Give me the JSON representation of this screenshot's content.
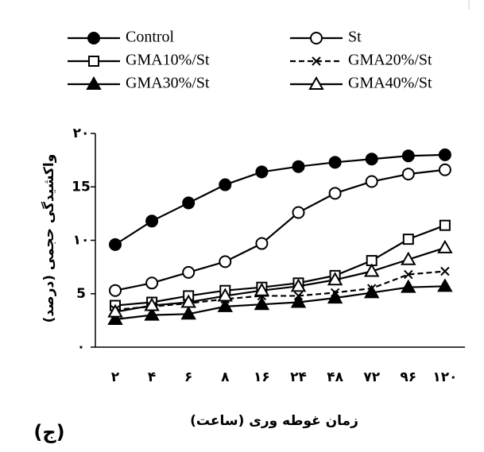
{
  "chart_data": {
    "type": "line",
    "ylabel": "واکشیدگی حجمی (درصد)",
    "xlabel": "زمان غوطه وری (ساعت)",
    "panel_label": "(ج)",
    "categories": [
      "۲",
      "۴",
      "۶",
      "۸",
      "۱۶",
      "۲۴",
      "۴۸",
      "۷۲",
      "۹۶",
      "۱۲۰"
    ],
    "ylim": [
      0,
      20
    ],
    "yticks": [
      {
        "value": 0,
        "label": "۰"
      },
      5,
      {
        "value": 10,
        "label": "۱۰"
      },
      15,
      {
        "value": 20,
        "label": "۲۰"
      }
    ],
    "series": [
      {
        "name": "Control",
        "color": "#000",
        "marker": "circle-filled",
        "dash": false,
        "values": [
          9.6,
          11.8,
          13.5,
          15.2,
          16.4,
          16.9,
          17.3,
          17.6,
          17.9,
          18.0
        ]
      },
      {
        "name": "St",
        "color": "#000",
        "marker": "circle-open",
        "dash": false,
        "values": [
          5.3,
          6.0,
          7.0,
          8.0,
          9.7,
          12.6,
          14.4,
          15.5,
          16.2,
          16.6
        ]
      },
      {
        "name": "GMA10%/St",
        "color": "#000",
        "marker": "square-open",
        "dash": false,
        "values": [
          3.9,
          4.2,
          4.8,
          5.3,
          5.6,
          6.0,
          6.7,
          8.1,
          10.1,
          11.4
        ]
      },
      {
        "name": "GMA20%/St",
        "color": "#000",
        "marker": "x",
        "dash": true,
        "values": [
          3.5,
          3.8,
          4.1,
          4.5,
          4.8,
          4.8,
          5.1,
          5.5,
          6.8,
          7.1
        ]
      },
      {
        "name": "GMA30%/St",
        "color": "#000",
        "marker": "triangle-filled",
        "dash": false,
        "values": [
          2.6,
          3.0,
          3.1,
          3.8,
          4.0,
          4.2,
          4.6,
          5.1,
          5.6,
          5.7
        ]
      },
      {
        "name": "GMA40%/St",
        "color": "#000",
        "marker": "triangle-open",
        "dash": false,
        "values": [
          3.3,
          3.9,
          4.2,
          4.8,
          5.3,
          5.7,
          6.3,
          7.1,
          8.2,
          9.3
        ]
      }
    ]
  }
}
